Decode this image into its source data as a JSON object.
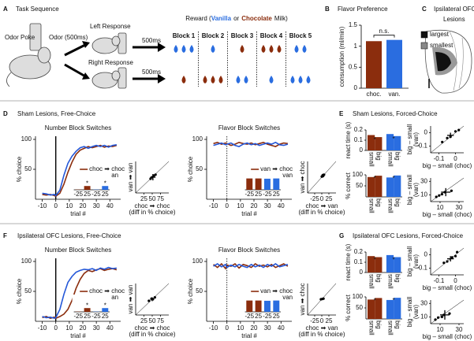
{
  "panel_a": {
    "letter": "A",
    "title": "Task Sequence",
    "odor_poke": "Odor Poke",
    "odor": "Odor (500ms)",
    "left_response": "Left Response",
    "right_response": "Right Response",
    "delay_top": "500ms",
    "delay_bottom": "500ms",
    "reward": {
      "prefix": "Reward (",
      "vanilla": "Vanilla",
      "or": "or",
      "chocolate": "Chocolate",
      "suffix": "Milk)"
    },
    "blocks": [
      "Block 1",
      "Block 2",
      "Block 3",
      "Block 4",
      "Block 5"
    ]
  },
  "panel_b": {
    "letter": "B",
    "title": "Flavor Preference",
    "ylabel": "consumption (ml/min)",
    "categories": [
      "choc.",
      "van."
    ],
    "values": [
      1.12,
      1.15
    ],
    "colors": [
      "#8b2d0d",
      "#2a6de0"
    ],
    "ylim": [
      0,
      1.5
    ],
    "yticks": [
      0,
      0.5,
      1,
      1.5
    ],
    "annotation": "n.s."
  },
  "panel_c": {
    "letter": "C",
    "title": [
      "Ipsilateral OFC",
      "Lesions"
    ],
    "legend": [
      "largest",
      "smallest"
    ],
    "legend_colors": [
      "#111111",
      "#888888"
    ]
  },
  "panel_d": {
    "letter": "D",
    "title": "Sham Lesions, Free-Choice",
    "number": {
      "title": "Number Block Switches",
      "xlabel": "trial #",
      "ylabel": "% choice",
      "xlim": [
        -15,
        48
      ],
      "xticks": [
        -10,
        0,
        10,
        20,
        30,
        40
      ],
      "ylim": [
        0,
        100
      ],
      "yticks": [
        50,
        100
      ],
      "zero_line": "solid",
      "x": [
        -10,
        -7,
        -4,
        -1,
        0,
        3,
        6,
        9,
        12,
        15,
        18,
        21,
        24,
        27,
        30,
        33,
        36,
        39,
        42,
        45
      ],
      "series": [
        {
          "name": "choc ➡ choc",
          "color": "#8b2d0d",
          "values": [
            8,
            7,
            8,
            6,
            5,
            10,
            25,
            45,
            62,
            75,
            82,
            85,
            88,
            86,
            88,
            90,
            87,
            89,
            88,
            90
          ]
        },
        {
          "name": "van ➡ van",
          "color": "#2457d8",
          "values": [
            10,
            9,
            7,
            8,
            6,
            15,
            40,
            60,
            72,
            80,
            86,
            88,
            85,
            88,
            90,
            88,
            90,
            87,
            90,
            91
          ]
        }
      ],
      "inset": {
        "categories": [
          "-25",
          "25",
          "-25",
          "25"
        ],
        "values": [
          2,
          30,
          2,
          30
        ],
        "colors": [
          "#8b2d0d",
          "#8b2d0d",
          "#2a6de0",
          "#2a6de0"
        ],
        "stars": [
          null,
          "*",
          null,
          "*"
        ],
        "ylim": [
          0,
          100
        ]
      }
    },
    "number_scatter": {
      "ylabel": [
        "van ➡ van"
      ],
      "xlabel": [
        "choc ➡ choc",
        "(diff in % choice)"
      ],
      "xlim": [
        0,
        100
      ],
      "ylim": [
        0,
        100
      ],
      "xticks": [
        25,
        50,
        75
      ],
      "points": {
        "x": [
          45,
          50,
          55,
          60
        ],
        "y": [
          45,
          50,
          55,
          58
        ]
      },
      "mean": [
        52,
        50
      ],
      "err": [
        8,
        10
      ]
    },
    "flavor": {
      "title": "Flavor Block Switches",
      "xlabel": "trial #",
      "ylabel": "% choice",
      "xlim": [
        -15,
        48
      ],
      "xticks": [
        -10,
        0,
        10,
        20,
        30,
        40
      ],
      "ylim": [
        0,
        100
      ],
      "yticks": [
        50,
        100
      ],
      "zero_line": "dotted",
      "x": [
        -10,
        -7,
        -4,
        -1,
        0,
        3,
        6,
        9,
        12,
        15,
        18,
        21,
        24,
        27,
        30,
        33,
        36,
        39,
        42,
        45
      ],
      "series": [
        {
          "name": "van ➡ choc",
          "color": "#8b2d0d",
          "values": [
            93,
            95,
            92,
            94,
            93,
            90,
            92,
            95,
            93,
            92,
            94,
            91,
            93,
            95,
            92,
            90,
            88,
            92,
            94,
            93
          ]
        },
        {
          "name": "choc ➡ van",
          "color": "#2457d8",
          "values": [
            90,
            92,
            94,
            91,
            92,
            94,
            90,
            88,
            92,
            94,
            91,
            93,
            90,
            92,
            94,
            92,
            95,
            91,
            90,
            92
          ]
        }
      ],
      "inset": {
        "categories": [
          "-25",
          "25",
          "-25",
          "25"
        ],
        "values": [
          90,
          90,
          88,
          90
        ],
        "colors": [
          "#8b2d0d",
          "#8b2d0d",
          "#2a6de0",
          "#2a6de0"
        ],
        "stars": [
          null,
          null,
          null,
          null
        ],
        "ylim": [
          0,
          100
        ]
      }
    },
    "flavor_scatter": {
      "ylabel": [
        "van ➡ choc"
      ],
      "xlabel": [
        "choc ➡ van",
        "(diff in % choice)"
      ],
      "xlim": [
        -50,
        50
      ],
      "ylim": [
        -50,
        50
      ],
      "xticks": [
        -25,
        0,
        25
      ],
      "points": {
        "x": [
          0,
          3,
          5,
          8
        ],
        "y": [
          2,
          6,
          4,
          8
        ]
      },
      "mean": [
        4,
        5
      ],
      "err": [
        4,
        6
      ]
    }
  },
  "panel_e": {
    "letter": "E",
    "title": "Sham Lesions, Forced-Choice",
    "react": {
      "ylabel": "react time (s)",
      "categories": [
        "small",
        "big",
        "small",
        "big"
      ],
      "values": [
        0.15,
        0.13,
        0.16,
        0.14
      ],
      "colors": [
        "#8b2d0d",
        "#8b2d0d",
        "#2a6de0",
        "#2a6de0"
      ],
      "stars": [
        null,
        "*",
        null,
        "*"
      ],
      "ylim": [
        0,
        0.2
      ],
      "yticks": [
        0,
        0.1,
        0.2
      ]
    },
    "correct": {
      "ylabel": "% correct",
      "categories": [
        "small",
        "big",
        "small",
        "big"
      ],
      "values": [
        90,
        96,
        88,
        97
      ],
      "colors": [
        "#8b2d0d",
        "#8b2d0d",
        "#2a6de0",
        "#2a6de0"
      ],
      "stars": [
        null,
        "*",
        null,
        "*"
      ],
      "ylim": [
        0,
        100
      ],
      "yticks": [
        50,
        100
      ]
    },
    "react_scatter": {
      "ylabel": [
        "big – small",
        "(van)"
      ],
      "xlabel": [
        "big – small (choc)"
      ],
      "xlim": [
        -0.15,
        0.05
      ],
      "ylim": [
        -0.15,
        0.05
      ],
      "xticks": [
        -0.1,
        0
      ],
      "yticks": [
        -0.1,
        0
      ],
      "points": {
        "x": [
          -0.08,
          -0.05,
          -0.03,
          0,
          0.02
        ],
        "y": [
          -0.07,
          -0.04,
          -0.03,
          0.01,
          0.02
        ]
      },
      "mean": [
        -0.03,
        -0.02
      ],
      "err": [
        0.02,
        0.02
      ]
    },
    "correct_scatter": {
      "ylabel": [
        "big – small",
        "(van)"
      ],
      "xlabel": [
        "big – small (choc)"
      ],
      "xlim": [
        0,
        35
      ],
      "ylim": [
        0,
        35
      ],
      "xticks": [
        10,
        30
      ],
      "yticks": [
        10,
        30
      ],
      "points": {
        "x": [
          6,
          9,
          12,
          15,
          22
        ],
        "y": [
          7,
          9,
          11,
          14,
          16
        ]
      },
      "mean": [
        16,
        14
      ],
      "err": [
        5,
        6
      ]
    }
  },
  "panel_f": {
    "letter": "F",
    "title": "Ipsilateral OFC Lesions, Free-Choice",
    "number": {
      "title": "Number Block Switches",
      "xlabel": "trial #",
      "ylabel": "% choice",
      "xlim": [
        -15,
        48
      ],
      "xticks": [
        -10,
        0,
        10,
        20,
        30,
        40
      ],
      "ylim": [
        0,
        100
      ],
      "yticks": [
        50,
        100
      ],
      "zero_line": "solid",
      "x": [
        -10,
        -7,
        -4,
        -1,
        0,
        3,
        6,
        9,
        12,
        15,
        18,
        21,
        24,
        27,
        30,
        33,
        36,
        39,
        42,
        45
      ],
      "series": [
        {
          "name": "choc ➡ choc",
          "color": "#8b2d0d",
          "values": [
            6,
            8,
            5,
            7,
            5,
            8,
            12,
            20,
            35,
            55,
            70,
            80,
            85,
            83,
            86,
            88,
            85,
            87,
            88,
            86
          ]
        },
        {
          "name": "van ➡ van",
          "color": "#2457d8",
          "values": [
            8,
            6,
            7,
            5,
            6,
            20,
            45,
            65,
            75,
            82,
            85,
            87,
            86,
            88,
            85,
            89,
            87,
            90,
            88,
            89
          ]
        }
      ],
      "inset": {
        "categories": [
          "-25",
          "25",
          "-25",
          "25"
        ],
        "values": [
          2,
          30,
          2,
          30
        ],
        "colors": [
          "#8b2d0d",
          "#8b2d0d",
          "#2a6de0",
          "#2a6de0"
        ],
        "stars": [
          null,
          "*",
          null,
          "*"
        ],
        "ylim": [
          0,
          100
        ]
      }
    },
    "number_scatter": {
      "ylabel": [
        "van ➡ van"
      ],
      "xlabel": [
        "choc ➡ choc",
        "(diff in % choice)"
      ],
      "xlim": [
        0,
        100
      ],
      "ylim": [
        0,
        100
      ],
      "xticks": [
        25,
        50,
        75
      ],
      "points": {
        "x": [
          40,
          48,
          52,
          58
        ],
        "y": [
          45,
          52,
          50,
          56
        ]
      },
      "mean": [
        50,
        50
      ],
      "err": [
        6,
        6
      ]
    },
    "flavor": {
      "title": "Flavor Block Switches",
      "xlabel": "trial #",
      "ylabel": "% choice",
      "xlim": [
        -15,
        48
      ],
      "xticks": [
        -10,
        0,
        10,
        20,
        30,
        40
      ],
      "ylim": [
        0,
        100
      ],
      "yticks": [
        50,
        100
      ],
      "zero_line": "dotted",
      "x": [
        -10,
        -7,
        -4,
        -1,
        0,
        3,
        6,
        9,
        12,
        15,
        18,
        21,
        24,
        27,
        30,
        33,
        36,
        39,
        42,
        45
      ],
      "series": [
        {
          "name": "van ➡ choc",
          "color": "#8b2d0d",
          "values": [
            95,
            90,
            96,
            88,
            94,
            92,
            96,
            89,
            95,
            93,
            90,
            96,
            92,
            94,
            91,
            95,
            90,
            93,
            96,
            92
          ]
        },
        {
          "name": "choc ➡ van",
          "color": "#2457d8",
          "values": [
            92,
            96,
            91,
            95,
            90,
            94,
            91,
            95,
            92,
            90,
            95,
            91,
            94,
            90,
            95,
            92,
            96,
            91,
            93,
            95
          ]
        }
      ],
      "inset": {
        "categories": [
          "-25",
          "25",
          "-25",
          "25"
        ],
        "values": [
          90,
          90,
          88,
          90
        ],
        "colors": [
          "#8b2d0d",
          "#8b2d0d",
          "#2a6de0",
          "#2a6de0"
        ],
        "stars": [
          null,
          null,
          null,
          null
        ],
        "ylim": [
          0,
          100
        ]
      }
    },
    "flavor_scatter": {
      "ylabel": [
        "van ➡ choc"
      ],
      "xlabel": [
        "choc ➡ van",
        "(diff in % choice)"
      ],
      "xlim": [
        -50,
        50
      ],
      "ylim": [
        -50,
        50
      ],
      "xticks": [
        -25,
        0,
        25
      ],
      "points": {
        "x": [
          -3,
          2,
          6
        ],
        "y": [
          0,
          1,
          2
        ]
      },
      "mean": [
        2,
        1
      ],
      "err": [
        4,
        2
      ]
    }
  },
  "panel_g": {
    "letter": "G",
    "title": "Ipsilateral OFC Lesions, Forced-Choice",
    "react": {
      "ylabel": "react time (s)",
      "categories": [
        "small",
        "big",
        "small",
        "big"
      ],
      "values": [
        0.16,
        0.15,
        0.17,
        0.15
      ],
      "colors": [
        "#8b2d0d",
        "#8b2d0d",
        "#2a6de0",
        "#2a6de0"
      ],
      "stars": [
        null,
        "*",
        null,
        "*"
      ],
      "ylim": [
        0,
        0.2
      ],
      "yticks": [
        0,
        0.1,
        0.2
      ]
    },
    "correct": {
      "ylabel": "% correct",
      "categories": [
        "small",
        "big",
        "small",
        "big"
      ],
      "values": [
        88,
        95,
        86,
        96
      ],
      "colors": [
        "#8b2d0d",
        "#8b2d0d",
        "#2a6de0",
        "#2a6de0"
      ],
      "stars": [
        null,
        "*",
        null,
        "*"
      ],
      "ylim": [
        0,
        100
      ],
      "yticks": [
        50,
        100
      ]
    },
    "react_scatter": {
      "ylabel": [
        "big – small",
        "(van)"
      ],
      "xlabel": [
        "big – small (choc)"
      ],
      "xlim": [
        -0.15,
        0.05
      ],
      "ylim": [
        -0.15,
        0.05
      ],
      "xticks": [
        -0.1,
        0
      ],
      "yticks": [
        -0.1,
        0
      ],
      "points": {
        "x": [
          -0.07,
          -0.05,
          -0.02,
          0,
          0.01
        ],
        "y": [
          -0.06,
          -0.05,
          -0.02,
          -0.01,
          0.02
        ]
      },
      "mean": [
        -0.03,
        -0.03
      ],
      "err": [
        0.02,
        0.02
      ]
    },
    "correct_scatter": {
      "ylabel": [
        "big – small",
        "(van)"
      ],
      "xlabel": [
        "big – small (choc)"
      ],
      "xlim": [
        0,
        35
      ],
      "ylim": [
        0,
        35
      ],
      "xticks": [
        10,
        30
      ],
      "yticks": [
        10,
        30
      ],
      "points": {
        "x": [
          5,
          8,
          12,
          14,
          20
        ],
        "y": [
          6,
          9,
          10,
          13,
          15
        ]
      },
      "mean": [
        15,
        13
      ],
      "err": [
        5,
        7
      ]
    }
  }
}
